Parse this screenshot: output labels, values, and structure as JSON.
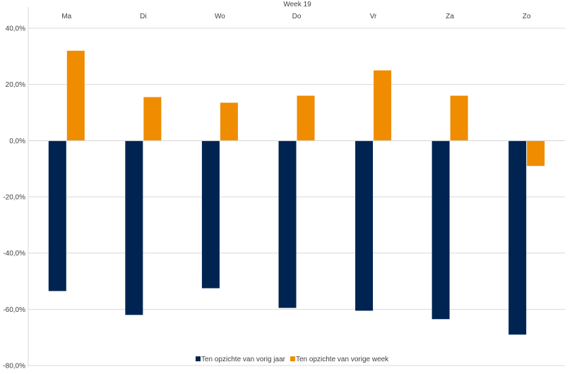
{
  "chart_data": {
    "type": "bar",
    "title": "Week 19",
    "categories": [
      "Ma",
      "Di",
      "Wo",
      "Do",
      "Vr",
      "Za",
      "Zo"
    ],
    "series": [
      {
        "name": "Ten opzichte van vorig jaar",
        "color": "#002452",
        "values": [
          -53.5,
          -62.0,
          -52.5,
          -59.5,
          -60.5,
          -63.5,
          -69.0
        ]
      },
      {
        "name": "Ten opzichte van vorige week",
        "color": "#f08c00",
        "values": [
          32.0,
          15.5,
          13.5,
          16.0,
          25.0,
          16.0,
          -9.0
        ]
      }
    ],
    "ylim": [
      -80,
      40
    ],
    "yticks": [
      "40,0%",
      "20,0%",
      "0,0%",
      "-20,0%",
      "-40,0%",
      "-60,0%",
      "-80,0%"
    ],
    "ytick_values": [
      40,
      20,
      0,
      -20,
      -40,
      -60,
      -80
    ],
    "xaxis_position": "top",
    "grid": true,
    "legend_position": "bottom"
  }
}
